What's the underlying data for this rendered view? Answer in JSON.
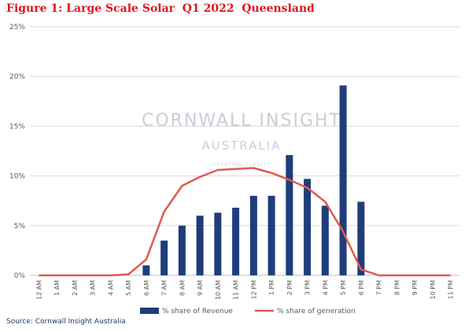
{
  "figure_title": "Figure 1: Large Scale Solar  Q1 2022  Queensland",
  "source": "Source: Cornwall Insight Australia",
  "watermark": {
    "line1": "CORNWALL INSIGHT",
    "line2": "AUSTRALIA",
    "line3": "CREATING CLARITY"
  },
  "colors": {
    "title": "#e0141e",
    "bar": "#1f3d7a",
    "line": "#e05a4e",
    "grid": "#d9d9d9"
  },
  "chart_data": {
    "type": "bar",
    "categories": [
      "12 AM",
      "1 AM",
      "2 AM",
      "3 AM",
      "4 AM",
      "5 AM",
      "6 AM",
      "7 AM",
      "8 AM",
      "9 AM",
      "10 AM",
      "11 AM",
      "12 PM",
      "1 PM",
      "2 PM",
      "3 PM",
      "4 PM",
      "5 PM",
      "6 PM",
      "7 PM",
      "8 PM",
      "9 PM",
      "10 PM",
      "11 PM"
    ],
    "series": [
      {
        "name": "% share of Revenue",
        "type": "bar",
        "values": [
          0,
          0,
          0,
          0,
          0,
          0,
          1.0,
          3.5,
          5.0,
          6.0,
          6.3,
          6.8,
          8.0,
          8.0,
          12.1,
          9.7,
          7.0,
          19.1,
          7.4,
          0,
          0,
          0,
          0,
          0
        ]
      },
      {
        "name": "% share of generation",
        "type": "line",
        "values": [
          0,
          0,
          0,
          0,
          0,
          0.1,
          1.6,
          6.4,
          9.0,
          9.9,
          10.6,
          10.7,
          10.8,
          10.3,
          9.6,
          8.8,
          7.4,
          4.4,
          0.6,
          0,
          0,
          0,
          0,
          0
        ]
      }
    ],
    "y_ticks": [
      "0%",
      "5%",
      "10%",
      "15%",
      "20%",
      "25%"
    ],
    "ylim": [
      0,
      25
    ],
    "grid": true,
    "legend": "bottom"
  }
}
